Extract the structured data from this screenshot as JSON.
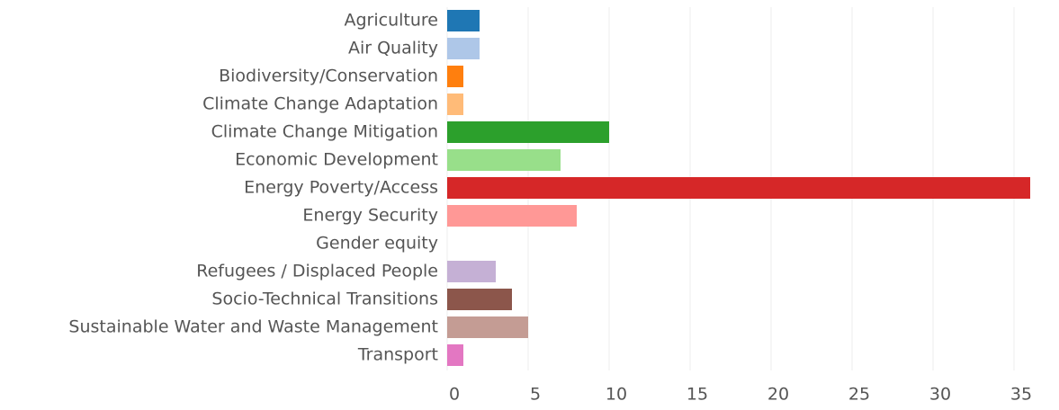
{
  "chart_data": {
    "type": "barh",
    "categories": [
      "Agriculture",
      "Air Quality",
      "Biodiversity/Conservation",
      "Climate Change Adaptation",
      "Climate Change Mitigation",
      "Economic Development",
      "Energy Poverty/Access",
      "Energy Security",
      "Gender equity",
      "Refugees / Displaced People",
      "Socio-Technical Transitions",
      "Sustainable Water and Waste Management",
      "Transport"
    ],
    "values": [
      2,
      2,
      1,
      1,
      10,
      7,
      36,
      8,
      0,
      3,
      4,
      5,
      1
    ],
    "colors": [
      "#1f77b4",
      "#aec7e8",
      "#ff7f0e",
      "#ffbb78",
      "#2ca02c",
      "#98df8a",
      "#d62728",
      "#ff9896",
      "#9467bd",
      "#c5b0d5",
      "#8c564b",
      "#c49c94",
      "#e377c2"
    ],
    "xlim": [
      0,
      37
    ],
    "xticks": [
      0,
      5,
      10,
      15,
      20,
      25,
      30,
      35
    ],
    "grid": true
  }
}
